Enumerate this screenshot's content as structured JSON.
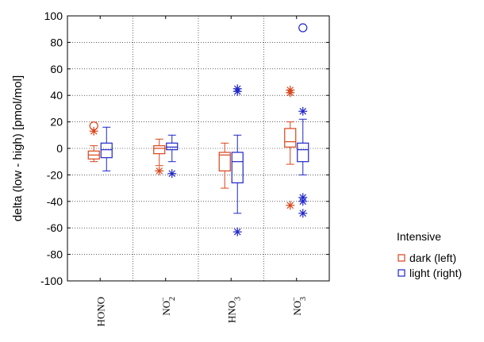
{
  "chart_data": {
    "type": "box",
    "title": "",
    "xlabel": "",
    "ylabel": "delta (low - high)  [pmol/mol]",
    "ylim": [
      -100,
      100
    ],
    "yticks": [
      100,
      80,
      60,
      40,
      20,
      0,
      -20,
      -40,
      -60,
      -80,
      -100
    ],
    "grid": true,
    "legend_position": "right",
    "legend_title": "Intensive",
    "categories": [
      {
        "main": "HONO",
        "sub": ""
      },
      {
        "main": "NO",
        "sub": "2",
        "sup": "−"
      },
      {
        "main": "HNO",
        "sub": "3"
      },
      {
        "main": "NO",
        "sub": "3",
        "sup": "−"
      }
    ],
    "series": [
      {
        "name": "dark (left)",
        "color": "#d9441a",
        "boxes": [
          {
            "whisker_low": -10,
            "q1": -8,
            "median": -5,
            "q3": -2,
            "whisker_high": 2,
            "outliers": [
              {
                "y": 17,
                "marker": "circle"
              },
              {
                "y": 13,
                "marker": "star"
              }
            ]
          },
          {
            "whisker_low": -13,
            "q1": -4,
            "median": 0,
            "q3": 2,
            "whisker_high": 7,
            "outliers": [
              {
                "y": -17,
                "marker": "star"
              }
            ]
          },
          {
            "whisker_low": -30,
            "q1": -17,
            "median": -5,
            "q3": -3,
            "whisker_high": 4,
            "outliers": []
          },
          {
            "whisker_low": -12,
            "q1": 1,
            "median": 5,
            "q3": 15,
            "whisker_high": 20,
            "outliers": [
              {
                "y": 44,
                "marker": "star"
              },
              {
                "y": 42,
                "marker": "star"
              },
              {
                "y": -43,
                "marker": "star"
              }
            ]
          }
        ]
      },
      {
        "name": "light (right)",
        "color": "#1f26c9",
        "boxes": [
          {
            "whisker_low": -17,
            "q1": -7,
            "median": -1,
            "q3": 4,
            "whisker_high": 16,
            "outliers": []
          },
          {
            "whisker_low": -10,
            "q1": -1,
            "median": 1,
            "q3": 4,
            "whisker_high": 10,
            "outliers": [
              {
                "y": -19,
                "marker": "star"
              }
            ]
          },
          {
            "whisker_low": -49,
            "q1": -26,
            "median": -10,
            "q3": -3,
            "whisker_high": 10,
            "outliers": [
              {
                "y": 45,
                "marker": "star"
              },
              {
                "y": 43,
                "marker": "star"
              },
              {
                "y": -63,
                "marker": "star"
              }
            ]
          },
          {
            "whisker_low": -20,
            "q1": -10,
            "median": -1,
            "q3": 4,
            "whisker_high": 22,
            "outliers": [
              {
                "y": 91,
                "marker": "circle"
              },
              {
                "y": 28,
                "marker": "star"
              },
              {
                "y": -37,
                "marker": "star"
              },
              {
                "y": -40,
                "marker": "star"
              },
              {
                "y": -49,
                "marker": "star"
              }
            ]
          }
        ]
      }
    ]
  }
}
